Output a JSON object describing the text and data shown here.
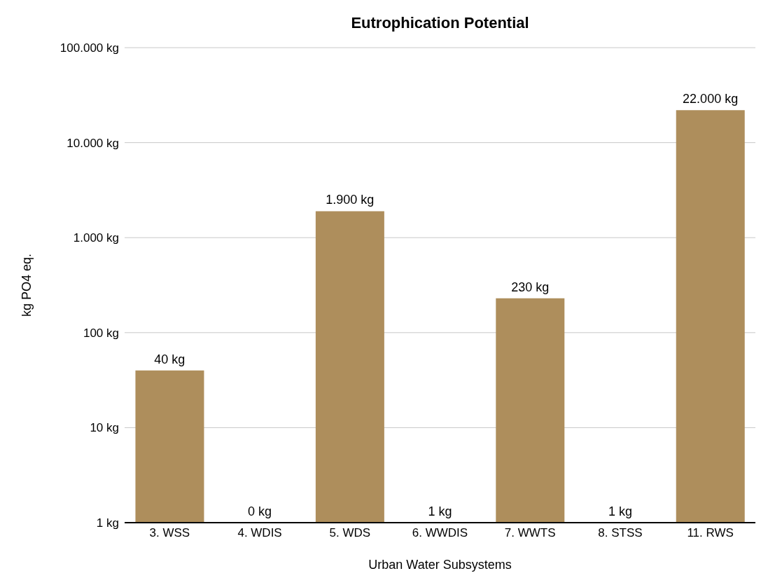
{
  "chart_data": {
    "type": "bar",
    "title": "Eutrophication Potential",
    "xlabel": "Urban Water Subsystems",
    "ylabel": "kg PO4 eq.",
    "categories": [
      "3. WSS",
      "4. WDIS",
      "5. WDS",
      "6. WWDIS",
      "7. WWTS",
      "8. STSS",
      "11. RWS"
    ],
    "values": [
      40,
      null,
      1900,
      1,
      230,
      1,
      22000
    ],
    "value_labels": [
      "40 kg",
      "0 kg",
      "1.900 kg",
      "1 kg",
      "230 kg",
      "1 kg",
      "22.000 kg"
    ],
    "color": "#ae8e5c",
    "log": "y",
    "ylim": [
      1,
      100000
    ],
    "yticks": [
      {
        "value": 1,
        "label": "1 kg"
      },
      {
        "value": 10,
        "label": "10 kg"
      },
      {
        "value": 100,
        "label": "100 kg"
      },
      {
        "value": 1000,
        "label": "1.000 kg"
      },
      {
        "value": 10000,
        "label": "10.000 kg"
      },
      {
        "value": 100000,
        "label": "100.000 kg"
      }
    ],
    "grid": "y"
  }
}
